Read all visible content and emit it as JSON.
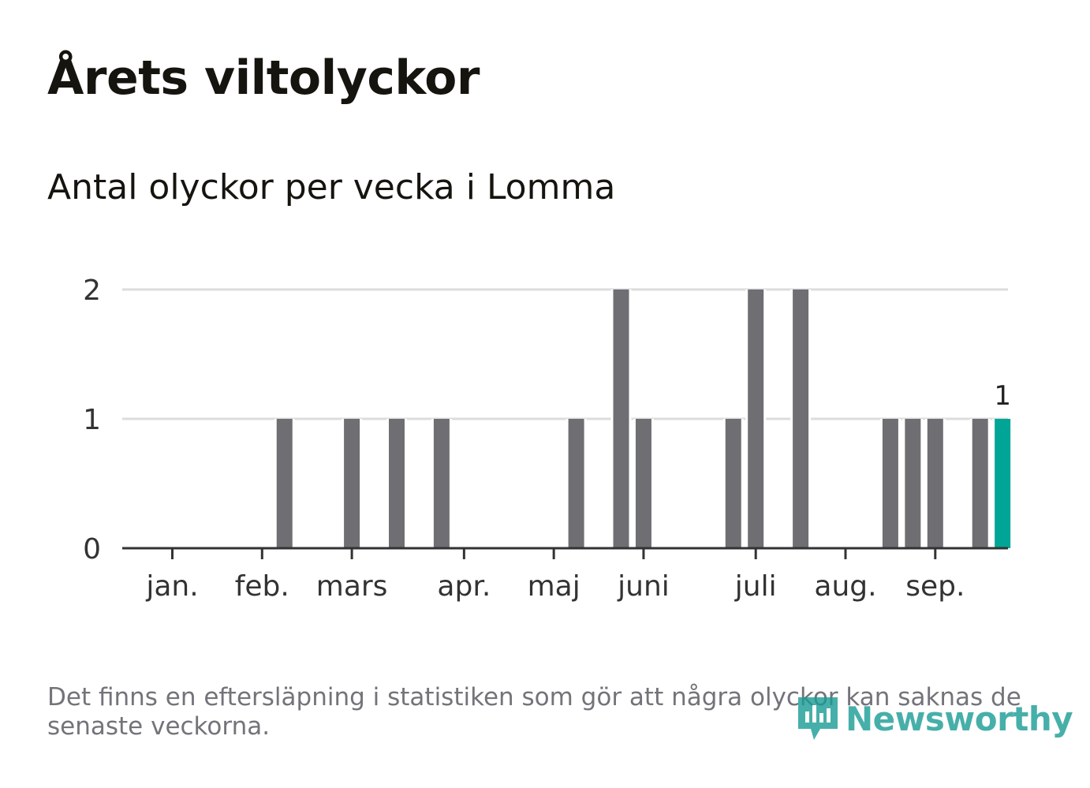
{
  "header": {
    "title": "Årets viltolyckor",
    "subtitle": "Antal olyckor per vecka i Lomma"
  },
  "footer": {
    "note": "Det finns en eftersläpning i statistiken som gör att några olyckor kan saknas de senaste veckorna.",
    "brand": "Newsworthy"
  },
  "colors": {
    "bar": "#6f6e73",
    "highlight": "#00a596",
    "grid": "#dcdcdc",
    "axis": "#333333"
  },
  "chart_data": {
    "type": "bar",
    "title": "Årets viltolyckor",
    "subtitle": "Antal olyckor per vecka i Lomma",
    "xlabel": "",
    "ylabel": "",
    "ylim": [
      0,
      2
    ],
    "yticks": [
      0,
      1,
      2
    ],
    "x_unit": "week",
    "weeks": [
      1,
      2,
      3,
      4,
      5,
      6,
      7,
      8,
      9,
      10,
      11,
      12,
      13,
      14,
      15,
      16,
      17,
      18,
      19,
      20,
      21,
      22,
      23,
      24,
      25,
      26,
      27,
      28,
      29,
      30,
      31,
      32,
      33,
      34,
      35,
      36,
      37,
      38
    ],
    "values": [
      0,
      0,
      0,
      0,
      0,
      1,
      0,
      0,
      1,
      0,
      1,
      0,
      1,
      0,
      0,
      0,
      0,
      0,
      1,
      0,
      2,
      1,
      0,
      0,
      0,
      1,
      2,
      0,
      2,
      0,
      0,
      0,
      1,
      1,
      1,
      0,
      1,
      1
    ],
    "highlight_index": 37,
    "highlight_label": "1",
    "month_ticks": [
      {
        "label": "jan.",
        "week": 0.2
      },
      {
        "label": "feb.",
        "week": 4.2
      },
      {
        "label": "mars",
        "week": 8.2
      },
      {
        "label": "apr.",
        "week": 13.2
      },
      {
        "label": "maj",
        "week": 17.2
      },
      {
        "label": "juni",
        "week": 21.2
      },
      {
        "label": "juli",
        "week": 26.2
      },
      {
        "label": "aug.",
        "week": 30.2
      },
      {
        "label": "sep.",
        "week": 34.2
      }
    ],
    "grid": true
  }
}
